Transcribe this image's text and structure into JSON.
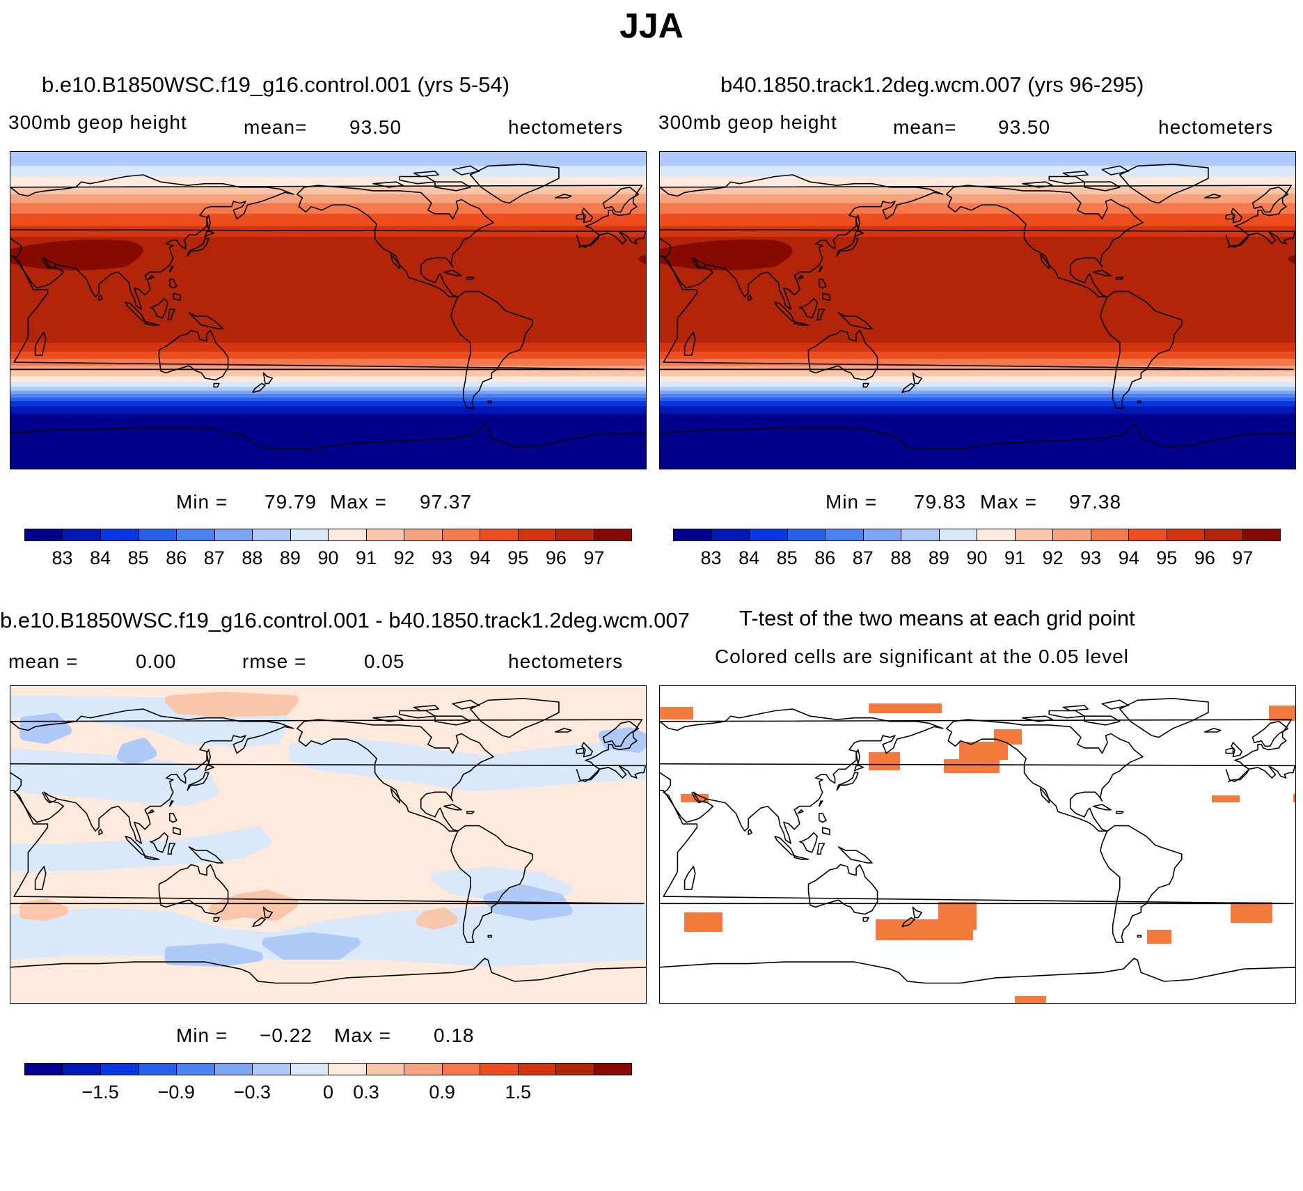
{
  "title": "JJA",
  "panels": [
    {
      "id": "p1",
      "title": "b.e10.B1850WSC.f19_g16.control.001 (yrs 5-54)",
      "variable": "300mb geop height",
      "mean_label": "mean=",
      "mean_value": "93.50",
      "units": "hectometers",
      "min_label": "Min =",
      "min_value": "79.79",
      "max_label": "Max =",
      "max_value": "97.37"
    },
    {
      "id": "p2",
      "title": "b40.1850.track1.2deg.wcm.007 (yrs 96-295)",
      "variable": "300mb geop height",
      "mean_label": "mean=",
      "mean_value": "93.50",
      "units": "hectometers",
      "min_label": "Min =",
      "min_value": "79.83",
      "max_label": "Max =",
      "max_value": "97.38"
    },
    {
      "id": "p3",
      "title": "b.e10.B1850WSC.f19_g16.control.001 - b40.1850.track1.2deg.wcm.007",
      "mean_label": "mean =",
      "mean_value": "0.00",
      "rmse_label": "rmse =",
      "rmse_value": "0.05",
      "units": "hectometers",
      "min_label": "Min =",
      "min_value": "−0.22",
      "max_label": "Max =",
      "max_value": "0.18"
    },
    {
      "id": "p4",
      "title": "T-test of the two means at each grid point",
      "subtitle": "Colored cells are significant at the 0.05 level"
    }
  ],
  "colorbar_abs": {
    "colors": [
      "#00008c",
      "#0019b4",
      "#0637e1",
      "#2860ea",
      "#4b82f0",
      "#7da5f4",
      "#afc9f8",
      "#d9e9fb",
      "#fdeadc",
      "#f9c6aa",
      "#f6a37f",
      "#f47a4e",
      "#ed4e1f",
      "#d43510",
      "#b32508",
      "#870a00"
    ],
    "ticks": [
      "83",
      "84",
      "85",
      "86",
      "87",
      "88",
      "89",
      "90",
      "91",
      "92",
      "93",
      "94",
      "95",
      "96",
      "97"
    ]
  },
  "colorbar_diff": {
    "colors": [
      "#00008c",
      "#0019b4",
      "#0637e1",
      "#2860ea",
      "#4b82f0",
      "#7da5f4",
      "#afc9f8",
      "#d9e9fb",
      "#fdeadc",
      "#f9c6aa",
      "#f6a37f",
      "#f47a4e",
      "#ed4e1f",
      "#d43510",
      "#b32508",
      "#870a00"
    ],
    "ticks": [
      "−1.5",
      "−0.9",
      "−0.3",
      "0",
      "0.3",
      "0.9",
      "1.5"
    ],
    "tick_boundaries": [
      2,
      4,
      6,
      8,
      9,
      11,
      13
    ]
  },
  "ttest_color": "#f47a3e"
}
